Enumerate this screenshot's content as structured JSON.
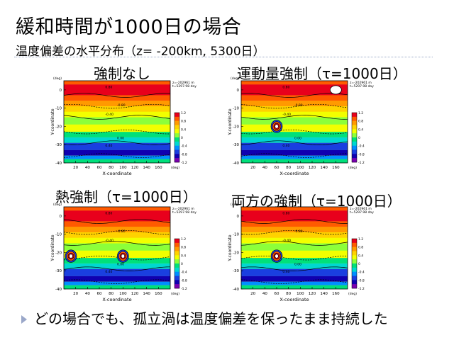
{
  "slide": {
    "title": "緩和時間が1000日の場合",
    "subtitle": "温度偏差の水平分布（z= -200km, 5300日）",
    "footer": "どの場合でも、孤立渦は温度偏差を保ったまま持続した"
  },
  "panels": [
    {
      "label": "強制なし",
      "vortices": [],
      "cold_spot": false
    },
    {
      "label": "運動量強制（τ=1000日）",
      "vortices": [
        {
          "x": 60,
          "y": -20
        }
      ],
      "cold_spot": true
    },
    {
      "label": "熱強制（τ=1000日）",
      "vortices": [
        {
          "x": 12,
          "y": -22
        },
        {
          "x": 100,
          "y": -22
        }
      ],
      "cold_spot": false
    },
    {
      "label": "両方の強制（τ=1000日）",
      "vortices": [
        {
          "x": 60,
          "y": -22
        }
      ],
      "cold_spot": false
    }
  ],
  "plot_text": {
    "ylabel": "Y-coordinate",
    "xlabel": "X-coordinate",
    "yunit": "(deg)",
    "xunit": "(deg)",
    "info_line1": "z=-202961 m",
    "info_line2": "t=5297.98 day"
  },
  "chart_data": {
    "type": "heatmap",
    "xlim": [
      0,
      180
    ],
    "ylim": [
      -40,
      5
    ],
    "xticks": [
      "20",
      "40",
      "60",
      "80",
      "100",
      "120",
      "140",
      "160"
    ],
    "yticks": [
      "0",
      "-10",
      "-20",
      "-30",
      "-40"
    ],
    "colorbar_ticks": [
      "1.2",
      "0.8",
      "0.4",
      "0",
      "-0.4",
      "-0.8",
      "-1.2"
    ],
    "contour_labels": [
      "-0.80",
      "-0.40",
      "0.00",
      "0.40",
      "0.80"
    ],
    "colors": [
      "#e8001c",
      "#ff5a00",
      "#ff9a00",
      "#ffd200",
      "#f2ff00",
      "#8cff3a",
      "#00e07a",
      "#00d8d0",
      "#0090ff",
      "#1a3fe0",
      "#1000b0",
      "#7a00b0"
    ]
  }
}
